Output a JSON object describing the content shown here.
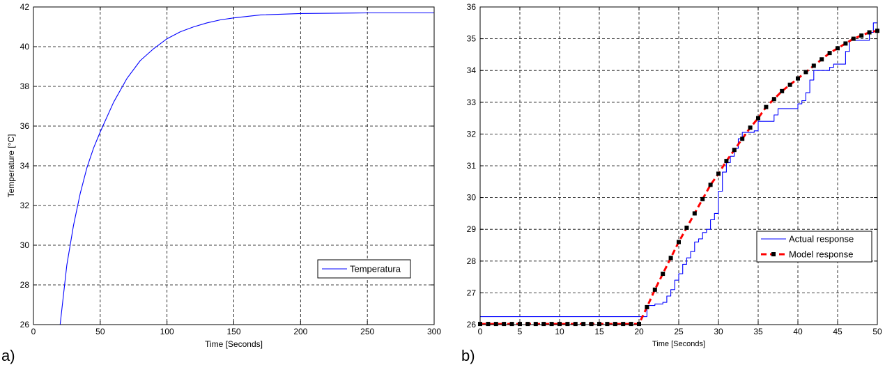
{
  "chart_data": [
    {
      "id": "a",
      "panel_label": "a)",
      "type": "line",
      "title": "",
      "xlabel": "Time [Seconds]",
      "ylabel": "Temperature [°C]",
      "xlim": [
        0,
        300
      ],
      "ylim": [
        26,
        42
      ],
      "xticks": [
        0,
        50,
        100,
        150,
        200,
        250,
        300
      ],
      "yticks": [
        26,
        28,
        30,
        32,
        34,
        36,
        38,
        40,
        42
      ],
      "grid": true,
      "legend_position": "right",
      "series": [
        {
          "name": "Temperatura",
          "color": "#0000ff",
          "style": "solid",
          "x": [
            0,
            20,
            25,
            30,
            35,
            40,
            45,
            50,
            60,
            70,
            80,
            90,
            100,
            110,
            120,
            130,
            140,
            150,
            170,
            200,
            250,
            300
          ],
          "y": [
            26,
            26,
            29.0,
            31.0,
            32.6,
            33.9,
            34.9,
            35.7,
            37.2,
            38.4,
            39.3,
            39.9,
            40.4,
            40.75,
            41.0,
            41.2,
            41.35,
            41.45,
            41.6,
            41.67,
            41.7,
            41.7
          ]
        }
      ]
    },
    {
      "id": "b",
      "panel_label": "b)",
      "type": "line",
      "title": "",
      "xlabel": "Time [Seconds]",
      "ylabel": "",
      "xlim": [
        0,
        50
      ],
      "ylim": [
        26,
        36
      ],
      "xticks": [
        0,
        5,
        10,
        15,
        20,
        25,
        30,
        35,
        40,
        45,
        50
      ],
      "yticks": [
        26,
        27,
        28,
        29,
        30,
        31,
        32,
        33,
        34,
        35,
        36
      ],
      "grid": true,
      "legend_position": "right",
      "series": [
        {
          "name": "Actual response",
          "color": "#0000ff",
          "style": "solid",
          "step": true,
          "x": [
            0,
            20.5,
            21,
            22,
            23,
            23.5,
            24,
            24.5,
            25,
            25.5,
            26,
            26.5,
            27,
            27.5,
            28,
            28.5,
            29,
            29.5,
            30,
            30.5,
            31,
            31.5,
            32,
            32.5,
            33,
            34.5,
            35,
            37,
            37.5,
            40,
            40.5,
            41,
            41.5,
            42,
            44,
            44.5,
            46,
            46.5,
            49,
            49.5,
            50
          ],
          "y": [
            26.25,
            26.25,
            26.6,
            26.65,
            26.7,
            26.9,
            27.1,
            27.4,
            27.6,
            27.9,
            28.1,
            28.3,
            28.6,
            28.7,
            28.9,
            29.0,
            29.3,
            29.5,
            30.2,
            30.8,
            31.1,
            31.3,
            31.55,
            31.85,
            32.05,
            32.1,
            32.4,
            32.6,
            32.8,
            32.95,
            33.05,
            33.3,
            33.7,
            34.0,
            34.1,
            34.2,
            34.6,
            34.95,
            35.2,
            35.5,
            35.5
          ]
        },
        {
          "name": "Model response",
          "color": "#ff0000",
          "style": "dashed-markers",
          "x": [
            0,
            1,
            2,
            3,
            4,
            5,
            6,
            7,
            8,
            9,
            10,
            11,
            12,
            13,
            14,
            15,
            16,
            17,
            18,
            19,
            20,
            21,
            22,
            23,
            24,
            25,
            26,
            27,
            28,
            29,
            30,
            31,
            32,
            33,
            34,
            35,
            36,
            37,
            38,
            39,
            40,
            41,
            42,
            43,
            44,
            45,
            46,
            47,
            48,
            49,
            50
          ],
          "y": [
            26.02,
            26.02,
            26.02,
            26.02,
            26.02,
            26.02,
            26.02,
            26.02,
            26.02,
            26.02,
            26.02,
            26.02,
            26.02,
            26.02,
            26.02,
            26.02,
            26.02,
            26.02,
            26.02,
            26.02,
            26.02,
            26.55,
            27.1,
            27.6,
            28.1,
            28.6,
            29.05,
            29.5,
            29.95,
            30.4,
            30.75,
            31.15,
            31.5,
            31.85,
            32.2,
            32.5,
            32.85,
            33.1,
            33.35,
            33.55,
            33.75,
            33.95,
            34.15,
            34.35,
            34.55,
            34.7,
            34.85,
            35.0,
            35.1,
            35.2,
            35.25
          ]
        }
      ]
    }
  ]
}
